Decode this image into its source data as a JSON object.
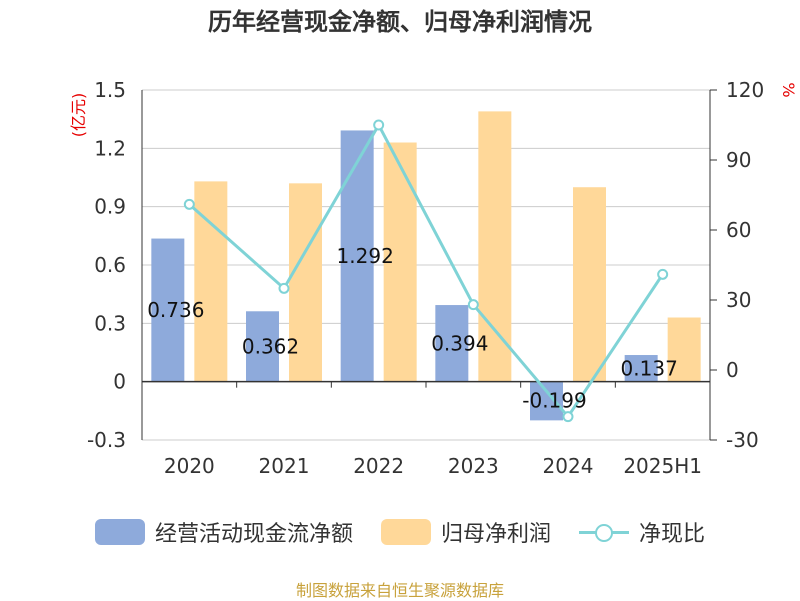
{
  "title": "历年经营现金净额、归母净利润情况",
  "source": "制图数据来自恒生聚源数据库",
  "left_unit": "(亿元)",
  "right_unit": "%",
  "colors": {
    "bar_cash": "#8eaadb",
    "bar_profit": "#ffd899",
    "line_ratio": "#7fd3d6",
    "unit_red": "#e60000",
    "source_gold": "#c8a23c",
    "text": "#333333",
    "grid": "#cccccc"
  },
  "legend": [
    {
      "label": "经营活动现金流净额",
      "kind": "bar",
      "color": "#8eaadb"
    },
    {
      "label": "归母净利润",
      "kind": "bar",
      "color": "#ffd899"
    },
    {
      "label": "净现比",
      "kind": "line",
      "color": "#7fd3d6"
    }
  ],
  "chart_data": {
    "type": "bar",
    "title": "历年经营现金净额、归母净利润情况",
    "categories": [
      "2020",
      "2021",
      "2022",
      "2023",
      "2024",
      "2025H1"
    ],
    "ylim": [
      -0.3,
      1.5
    ],
    "yticks": [
      -0.3,
      0,
      0.3,
      0.6,
      0.9,
      1.2,
      1.5
    ],
    "yticks_labels": [
      "-0.3",
      "0",
      "0.3",
      "0.6",
      "0.9",
      "1.2",
      "1.5"
    ],
    "y2lim": [
      -30,
      120
    ],
    "y2ticks": [
      -30,
      0,
      30,
      60,
      90,
      120
    ],
    "y2ticks_labels": [
      "-30",
      "0",
      "30",
      "60",
      "90",
      "120"
    ],
    "ylabel": "(亿元)",
    "y2label": "%",
    "grid": true,
    "legend_position": "bottom",
    "series": [
      {
        "name": "经营活动现金流净额",
        "type": "bar",
        "axis": "left",
        "values": [
          0.736,
          0.362,
          1.292,
          0.394,
          -0.199,
          0.137
        ],
        "labels": [
          "0.736",
          "0.362",
          "1.292",
          "0.394",
          "-0.199",
          "0.137"
        ]
      },
      {
        "name": "归母净利润",
        "type": "bar",
        "axis": "left",
        "values": [
          1.03,
          1.02,
          1.23,
          1.39,
          1.0,
          0.33
        ]
      },
      {
        "name": "净现比",
        "type": "line",
        "axis": "right",
        "values": [
          71,
          35,
          105,
          28,
          -20,
          41
        ]
      }
    ]
  }
}
